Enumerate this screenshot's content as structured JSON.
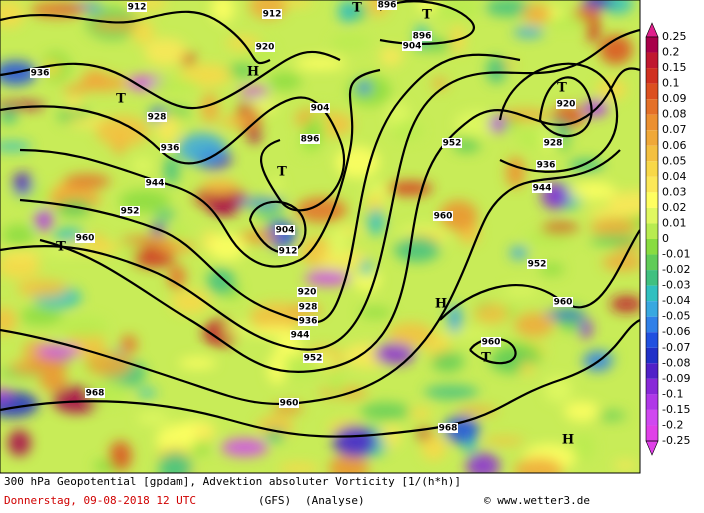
{
  "map": {
    "contour_labels": [
      "912",
      "912",
      "896",
      "896",
      "904",
      "920",
      "936",
      "928",
      "904",
      "896",
      "936",
      "944",
      "952",
      "960",
      "904",
      "912",
      "920",
      "928",
      "936",
      "944",
      "952",
      "960",
      "968",
      "968",
      "952",
      "960",
      "952",
      "960",
      "960",
      "944",
      "936",
      "928",
      "920"
    ],
    "centers": [
      "T",
      "T",
      "T",
      "T",
      "T",
      "T",
      "T",
      "H",
      "H",
      "H"
    ]
  },
  "legend": {
    "labels": [
      "0.25",
      "0.2",
      "0.15",
      "0.1",
      "0.09",
      "0.08",
      "0.07",
      "0.06",
      "0.05",
      "0.04",
      "0.03",
      "0.02",
      "0.01",
      "0",
      "-0.01",
      "-0.02",
      "-0.03",
      "-0.04",
      "-0.05",
      "-0.06",
      "-0.07",
      "-0.08",
      "-0.09",
      "-0.1",
      "-0.15",
      "-0.2",
      "-0.25"
    ],
    "colors": [
      "#e0208c",
      "#a8004a",
      "#c01830",
      "#d03020",
      "#dc5020",
      "#e47028",
      "#ec9030",
      "#f0a838",
      "#f4c040",
      "#f8d848",
      "#fce858",
      "#ffff60",
      "#e0f860",
      "#b8ec50",
      "#88dc40",
      "#60cc58",
      "#40c080",
      "#30c0c0",
      "#38a8e0",
      "#3080e8",
      "#2050e0",
      "#2030c8",
      "#5020c8",
      "#8828d8",
      "#b038e8",
      "#d048f0",
      "#e040e8"
    ]
  },
  "footer": {
    "line1": "300 hPa Geopotential [gpdam], Advektion absoluter Vorticity [1/(h*h)]",
    "date": "Donnerstag, 09-08-2018  12 UTC",
    "model": "(GFS)",
    "run": "(Analyse)",
    "copyright": "© www.wetter3.de"
  }
}
